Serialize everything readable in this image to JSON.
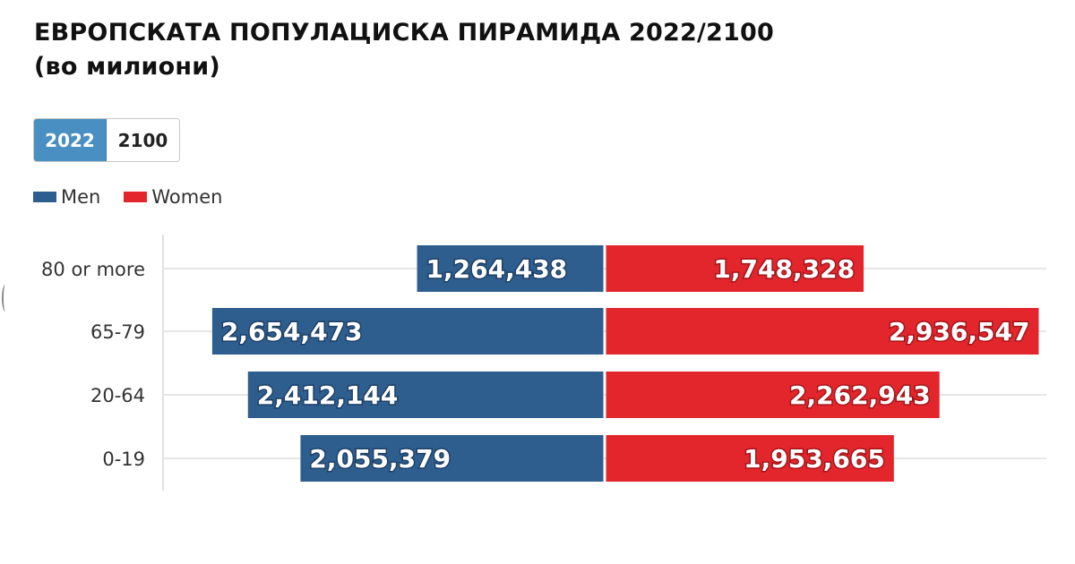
{
  "title": {
    "line1": "ЕВРОПСКАТА ПОПУЛАЦИСКА ПИРАМИДА 2022/2100",
    "line2": "(во милиони)"
  },
  "toggle": {
    "options": [
      "2022",
      "2100"
    ],
    "selected": "2022"
  },
  "legend": {
    "men_label": "Men",
    "women_label": "Women"
  },
  "colors": {
    "men": "#2e5e8e",
    "women": "#e3262c",
    "toggle_active": "#4a8fc1",
    "grid": "#e6e6e6"
  },
  "chart_data": {
    "type": "bar",
    "orientation": "horizontal-pyramid",
    "categories": [
      "80 or more",
      "65-79",
      "20-64",
      "0-19"
    ],
    "series": [
      {
        "name": "Men",
        "values": [
          1264438,
          2654473,
          2412144,
          2055379
        ],
        "labels": [
          "1,264,438",
          "2,654,473",
          "2,412,144",
          "2,055,379"
        ]
      },
      {
        "name": "Women",
        "values": [
          1748328,
          2936547,
          2262943,
          1953665
        ],
        "labels": [
          "1,748,328",
          "2,936,547",
          "2,262,943",
          "1,953,665"
        ]
      }
    ],
    "xlim": [
      -2936547,
      2936547
    ],
    "grid": true,
    "legend_position": "top-left"
  }
}
